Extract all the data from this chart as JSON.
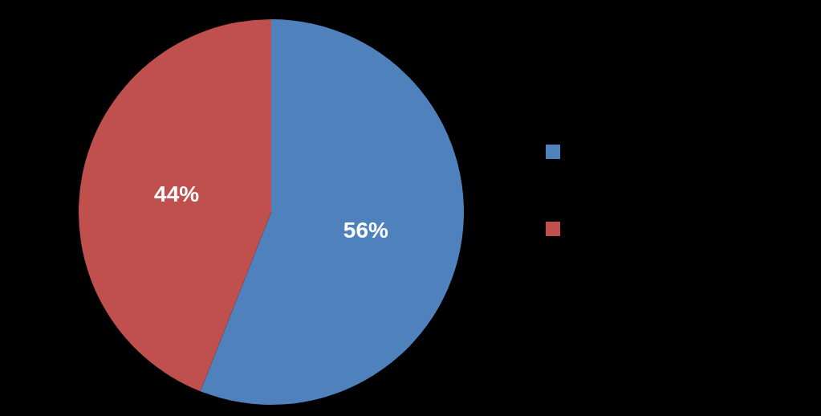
{
  "chart_data": {
    "type": "pie",
    "categories": [
      null,
      null
    ],
    "values": [
      56,
      44
    ],
    "colors": [
      "#4f81bd",
      "#c0504d"
    ],
    "value_labels": [
      "56%",
      "44%"
    ]
  }
}
